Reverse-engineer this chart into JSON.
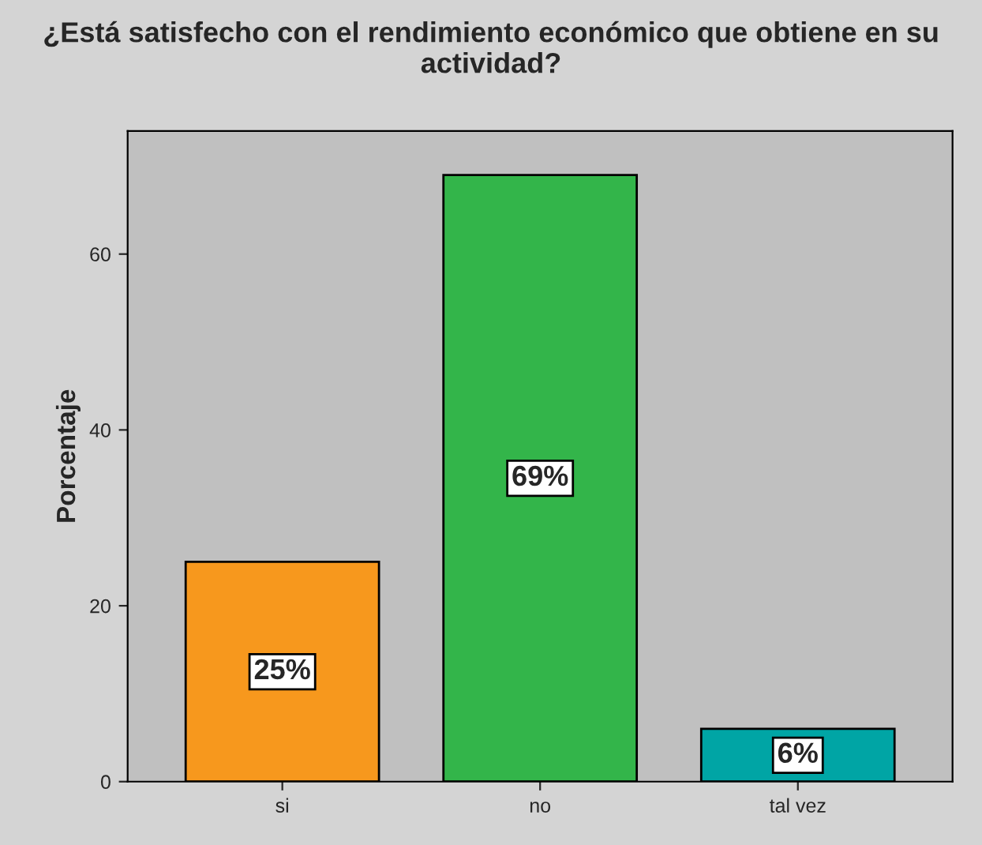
{
  "chart_data": {
    "type": "bar",
    "title": "¿Está satisfecho con el rendimiento económico que obtiene en su actividad?",
    "ylabel": "Porcentaje",
    "categories": [
      "si",
      "no",
      "tal vez"
    ],
    "values": [
      25,
      69,
      6
    ],
    "value_labels": [
      "25%",
      "69%",
      "6%"
    ],
    "colors": [
      "#f7981d",
      "#33b54a",
      "#00a5a5"
    ],
    "ylim": [
      0,
      74
    ],
    "yticks": [
      0,
      20,
      40,
      60
    ],
    "grid": false,
    "legend": false
  }
}
